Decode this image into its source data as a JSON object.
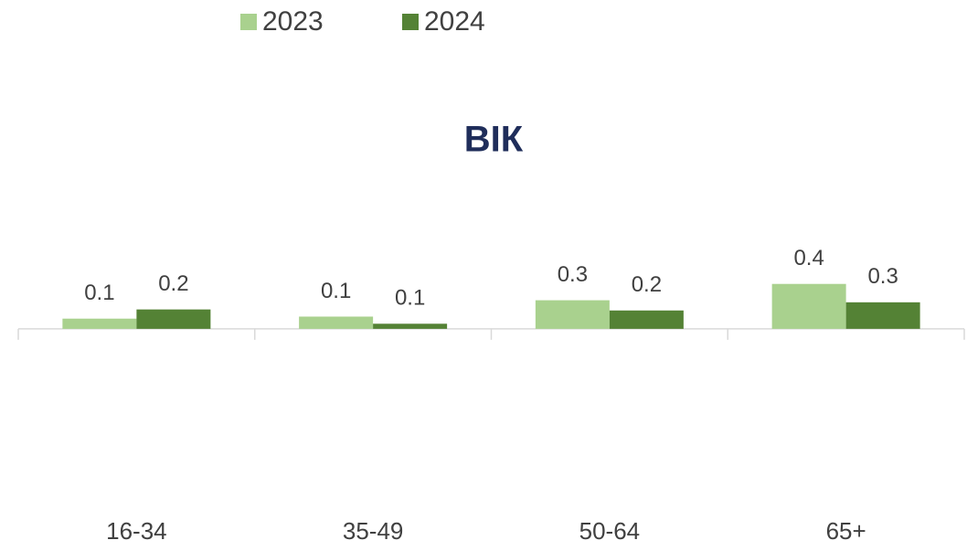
{
  "chart_data": {
    "type": "bar",
    "title": "ВІК",
    "categories": [
      "16-34",
      "35-49",
      "50-64",
      "65+"
    ],
    "series": [
      {
        "name": "2023",
        "color": "#a9d18e",
        "values": [
          0.1,
          0.12,
          0.28,
          0.44
        ],
        "value_labels": [
          "0.1",
          "0.1",
          "0.3",
          "0.4"
        ]
      },
      {
        "name": "2024",
        "color": "#548235",
        "values": [
          0.19,
          0.05,
          0.18,
          0.26
        ],
        "value_labels": [
          "0.2",
          "0.1",
          "0.2",
          "0.3"
        ]
      }
    ],
    "ylim": [
      -1.2,
      0.5
    ],
    "legend": "top"
  }
}
